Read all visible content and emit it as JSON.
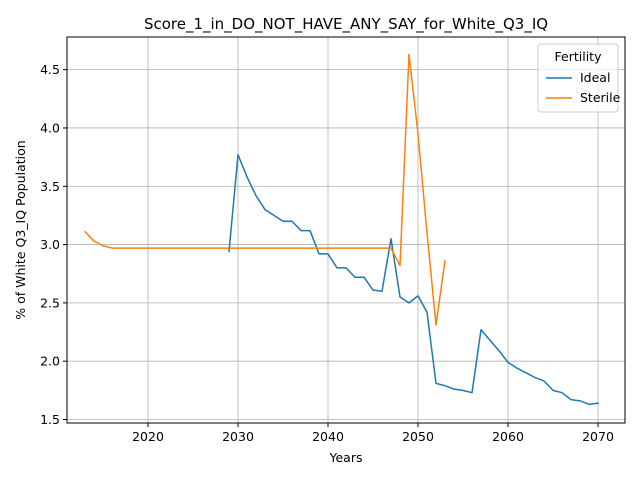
{
  "chart_data": {
    "type": "line",
    "title": "Score_1_in_DO_NOT_HAVE_ANY_SAY_for_White_Q3_IQ",
    "xlabel": "Years",
    "ylabel": "% of White Q3_IQ Population",
    "xlim": [
      2011,
      2073
    ],
    "ylim": [
      1.47,
      4.78
    ],
    "x_ticks": [
      2020,
      2030,
      2040,
      2050,
      2060,
      2070
    ],
    "y_ticks": [
      1.5,
      2.0,
      2.5,
      3.0,
      3.5,
      4.0,
      4.5
    ],
    "y_tick_labels": [
      "1.5",
      "2.0",
      "2.5",
      "3.0",
      "3.5",
      "4.0",
      "4.5"
    ],
    "grid": true,
    "legend": {
      "title": "Fertility",
      "placement": "top-right"
    },
    "series": [
      {
        "name": "Ideal",
        "color": "#1f77b4",
        "x": [
          2029,
          2030,
          2031,
          2032,
          2033,
          2034,
          2035,
          2036,
          2037,
          2038,
          2039,
          2040,
          2041,
          2042,
          2043,
          2044,
          2045,
          2046,
          2047,
          2048,
          2049,
          2050,
          2051,
          2052,
          2053,
          2054,
          2055,
          2056,
          2057,
          2058,
          2059,
          2060,
          2061,
          2062,
          2063,
          2064,
          2065,
          2066,
          2067,
          2068,
          2069,
          2070
        ],
        "values": [
          2.94,
          3.77,
          3.58,
          3.42,
          3.3,
          3.25,
          3.2,
          3.2,
          3.12,
          3.12,
          2.92,
          2.92,
          2.8,
          2.8,
          2.72,
          2.72,
          2.61,
          2.6,
          3.05,
          2.55,
          2.5,
          2.56,
          2.42,
          1.81,
          1.79,
          1.76,
          1.75,
          1.73,
          2.27,
          2.18,
          2.09,
          1.99,
          1.94,
          1.9,
          1.86,
          1.83,
          1.75,
          1.73,
          1.67,
          1.66,
          1.63,
          1.64
        ]
      },
      {
        "name": "Sterile",
        "color": "#ff7f0e",
        "x": [
          2013,
          2014,
          2015,
          2016,
          2017,
          2018,
          2019,
          2020,
          2021,
          2022,
          2023,
          2024,
          2025,
          2026,
          2027,
          2028,
          2029,
          2030,
          2031,
          2032,
          2033,
          2034,
          2035,
          2036,
          2037,
          2038,
          2039,
          2040,
          2041,
          2042,
          2043,
          2044,
          2045,
          2046,
          2047,
          2048,
          2049,
          2050,
          2051,
          2052,
          2053
        ],
        "values": [
          3.11,
          3.03,
          2.99,
          2.97,
          2.97,
          2.97,
          2.97,
          2.97,
          2.97,
          2.97,
          2.97,
          2.97,
          2.97,
          2.97,
          2.97,
          2.97,
          2.97,
          2.97,
          2.97,
          2.97,
          2.97,
          2.97,
          2.97,
          2.97,
          2.97,
          2.97,
          2.97,
          2.97,
          2.97,
          2.97,
          2.97,
          2.97,
          2.97,
          2.97,
          2.97,
          2.82,
          4.63,
          3.95,
          3.1,
          2.31,
          2.86
        ]
      }
    ]
  }
}
